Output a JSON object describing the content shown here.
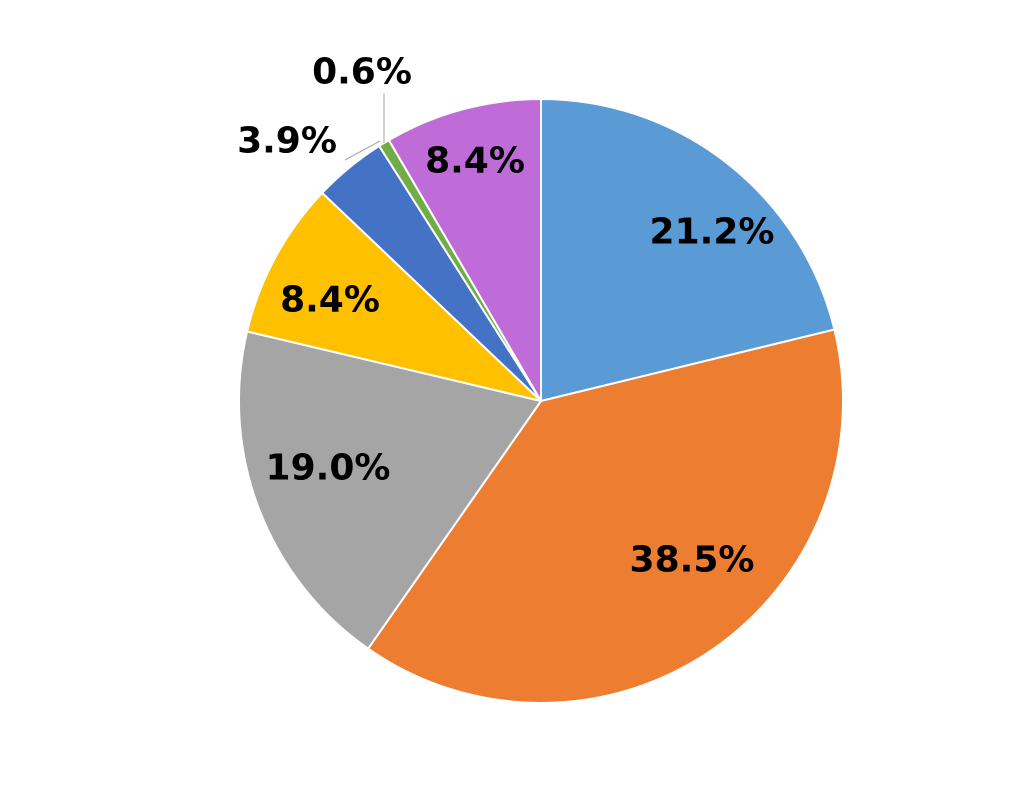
{
  "chart_data": {
    "type": "pie",
    "start_angle_deg": 0,
    "direction": "clockwise",
    "legend": "none",
    "slices": [
      {
        "value": 21.2,
        "label": "21.2%",
        "color": "#5B9BD5"
      },
      {
        "value": 38.5,
        "label": "38.5%",
        "color": "#ED7D31"
      },
      {
        "value": 19.0,
        "label": "19.0%",
        "color": "#A5A5A5"
      },
      {
        "value": 8.4,
        "label": "8.4%",
        "color": "#FFC000"
      },
      {
        "value": 3.9,
        "label": "3.9%",
        "color": "#4472C4"
      },
      {
        "value": 0.6,
        "label": "0.6%",
        "color": "#70AD47"
      },
      {
        "value": 8.4,
        "label": "8.4%",
        "color": "#BF6BD8"
      }
    ]
  }
}
